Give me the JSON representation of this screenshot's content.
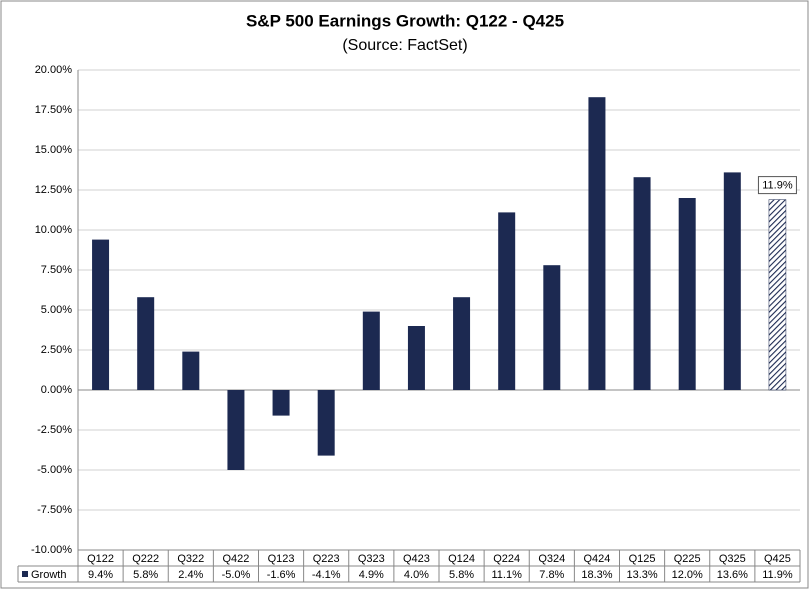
{
  "chart_data": {
    "type": "bar",
    "title": "S&P 500 Earnings Growth: Q122 - Q425",
    "subtitle": "(Source: FactSet)",
    "categories": [
      "Q122",
      "Q222",
      "Q322",
      "Q422",
      "Q123",
      "Q223",
      "Q323",
      "Q423",
      "Q124",
      "Q224",
      "Q324",
      "Q424",
      "Q125",
      "Q225",
      "Q325",
      "Q425"
    ],
    "series": [
      {
        "name": "Growth",
        "color": "#1c2951",
        "values": [
          9.4,
          5.8,
          2.4,
          -5.0,
          -1.6,
          -4.1,
          4.9,
          4.0,
          5.8,
          11.1,
          7.8,
          18.3,
          13.3,
          12.0,
          13.6,
          11.9
        ],
        "value_labels": [
          "9.4%",
          "5.8%",
          "2.4%",
          "-5.0%",
          "-1.6%",
          "-4.1%",
          "4.9%",
          "4.0%",
          "5.8%",
          "11.1%",
          "7.8%",
          "18.3%",
          "13.3%",
          "12.0%",
          "13.6%",
          "11.9%"
        ]
      }
    ],
    "ylim": [
      -10,
      20
    ],
    "yticks": [
      {
        "value": -10,
        "label": "-10.00%"
      },
      {
        "value": -7.5,
        "label": "-7.50%"
      },
      {
        "value": -5,
        "label": "-5.00%"
      },
      {
        "value": -2.5,
        "label": "-2.50%"
      },
      {
        "value": 0,
        "label": "0.00%"
      },
      {
        "value": 2.5,
        "label": "2.50%"
      },
      {
        "value": 5,
        "label": "5.00%"
      },
      {
        "value": 7.5,
        "label": "7.50%"
      },
      {
        "value": 10,
        "label": "10.00%"
      },
      {
        "value": 12.5,
        "label": "12.50%"
      },
      {
        "value": 15,
        "label": "15.00%"
      },
      {
        "value": 17.5,
        "label": "17.50%"
      },
      {
        "value": 20,
        "label": "20.00%"
      }
    ],
    "grid": true
  }
}
